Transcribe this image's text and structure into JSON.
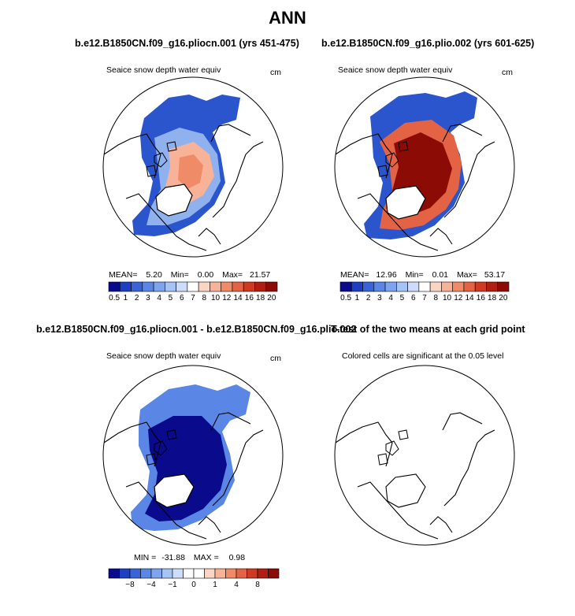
{
  "figure": {
    "title": "ANN",
    "panel1_title": "b.e12.B1850CN.f09_g16.pliocn.001 (yrs 451-475)",
    "panel2_title": "b.e12.B1850CN.f09_g16.plio.002 (yrs 601-625)",
    "panel3_title": "b.e12.B1850CN.f09_g16.pliocn.001 - b.e12.B1850CN.f09_g16.plio.002",
    "panel4_title": "T-test of the two means at each grid point"
  },
  "panels": [
    {
      "id": "p1",
      "label": "Seaice snow depth water equiv",
      "units": "cm",
      "stats": {
        "mean_label": "MEAN=",
        "mean": "5.20",
        "min_label": "Min=",
        "min": "0.00",
        "max_label": "Max=",
        "max": "21.57"
      }
    },
    {
      "id": "p2",
      "label": "Seaice snow depth water equiv",
      "units": "cm",
      "stats": {
        "mean_label": "MEAN=",
        "mean": "12.96",
        "min_label": "Min=",
        "min": "0.01",
        "max_label": "Max=",
        "max": "53.17"
      }
    },
    {
      "id": "p3",
      "label": "Seaice snow depth water equiv",
      "units": "cm",
      "stats": {
        "min_label": "MIN =",
        "min": "-31.88",
        "max_label": "MAX =",
        "max": "0.98"
      }
    },
    {
      "id": "p4",
      "label": "Colored cells are significant at the 0.05 level"
    }
  ],
  "colorbars": {
    "seq": {
      "colors": [
        "#0a0a8c",
        "#1c3fc4",
        "#3864d8",
        "#5a86e6",
        "#7fa4ee",
        "#a6c3f5",
        "#ccdcfa",
        "#ffffff",
        "#fbd5c3",
        "#f7b297",
        "#f08b68",
        "#e36344",
        "#d03a22",
        "#b01e10",
        "#8c0c05"
      ],
      "ticks": [
        "0.5",
        "1",
        "2",
        "3",
        "4",
        "5",
        "6",
        "7",
        "8",
        "10",
        "12",
        "14",
        "16",
        "18",
        "20"
      ]
    },
    "diff": {
      "colors": [
        "#0a0a8c",
        "#1c3fc4",
        "#3864d8",
        "#5a86e6",
        "#7fa4ee",
        "#a6c3f5",
        "#ccdcfa",
        "#ffffff",
        "#ffffff",
        "#fbd5c3",
        "#f7b297",
        "#f08b68",
        "#e36344",
        "#d03a22",
        "#b01e10",
        "#8c0c05"
      ],
      "ticks": [
        "−8",
        "−4",
        "−1",
        "0",
        "1",
        "4",
        "8"
      ]
    }
  },
  "chart_data": [
    {
      "type": "heatmap",
      "title": "b.e12.B1850CN.f09_g16.pliocn.001 (yrs 451-475)",
      "variable": "Seaice snow depth water equiv",
      "units": "cm",
      "projection": "north-polar-stereographic",
      "mean": 5.2,
      "min": 0.0,
      "max": 21.57,
      "contour_levels": [
        0.5,
        1,
        2,
        3,
        4,
        5,
        6,
        7,
        8,
        10,
        12,
        14,
        16,
        18,
        20
      ]
    },
    {
      "type": "heatmap",
      "title": "b.e12.B1850CN.f09_g16.plio.002 (yrs 601-625)",
      "variable": "Seaice snow depth water equiv",
      "units": "cm",
      "projection": "north-polar-stereographic",
      "mean": 12.96,
      "min": 0.01,
      "max": 53.17,
      "contour_levels": [
        0.5,
        1,
        2,
        3,
        4,
        5,
        6,
        7,
        8,
        10,
        12,
        14,
        16,
        18,
        20
      ]
    },
    {
      "type": "heatmap",
      "title": "b.e12.B1850CN.f09_g16.pliocn.001 - b.e12.B1850CN.f09_g16.plio.002",
      "variable": "Seaice snow depth water equiv",
      "units": "cm",
      "projection": "north-polar-stereographic",
      "min": -31.88,
      "max": 0.98,
      "contour_levels": [
        -8,
        -4,
        -1,
        0,
        1,
        4,
        8
      ]
    },
    {
      "type": "heatmap",
      "title": "T-test of the two means at each grid point",
      "note": "Colored cells are significant at the 0.05 level",
      "projection": "north-polar-stereographic",
      "significant_cells": 0
    }
  ]
}
